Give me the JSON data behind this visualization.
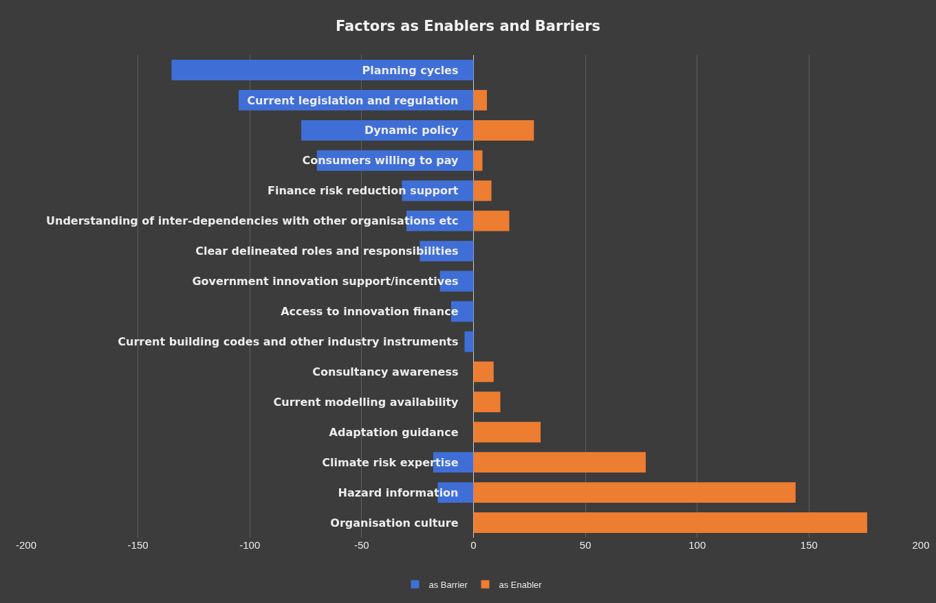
{
  "chart_data": {
    "type": "bar",
    "orientation": "horizontal",
    "title": "Factors as Enablers and Barriers",
    "categories": [
      "Planning cycles",
      "Current legislation and regulation",
      "Dynamic policy",
      "Consumers willing to pay",
      "Finance risk reduction support",
      "Understanding of inter-dependencies with other organisations etc",
      "Clear delineated roles and responsibilities",
      "Government innovation support/incentives",
      "Access to innovation finance",
      "Current building codes and other industry instruments",
      "Consultancy awareness",
      "Current modelling availability",
      "Adaptation guidance",
      "Climate risk expertise",
      "Hazard information",
      "Organisation culture"
    ],
    "series": [
      {
        "name": "as Barrier",
        "color": "#3f6fd6",
        "values": [
          -135,
          -105,
          -77,
          -70,
          -32,
          -30,
          -24,
          -15,
          -10,
          -4,
          0,
          0,
          0,
          -18,
          -16,
          0
        ]
      },
      {
        "name": "as Enabler",
        "color": "#ed7d31",
        "values": [
          0,
          6,
          27,
          4,
          8,
          16,
          0,
          0,
          0,
          0,
          9,
          12,
          30,
          77,
          144,
          176
        ]
      }
    ],
    "xlim": [
      -200,
      200
    ],
    "xticks": [
      -200,
      -150,
      -100,
      -50,
      0,
      50,
      100,
      150,
      200
    ],
    "grid": "x",
    "legend": "bottom"
  }
}
